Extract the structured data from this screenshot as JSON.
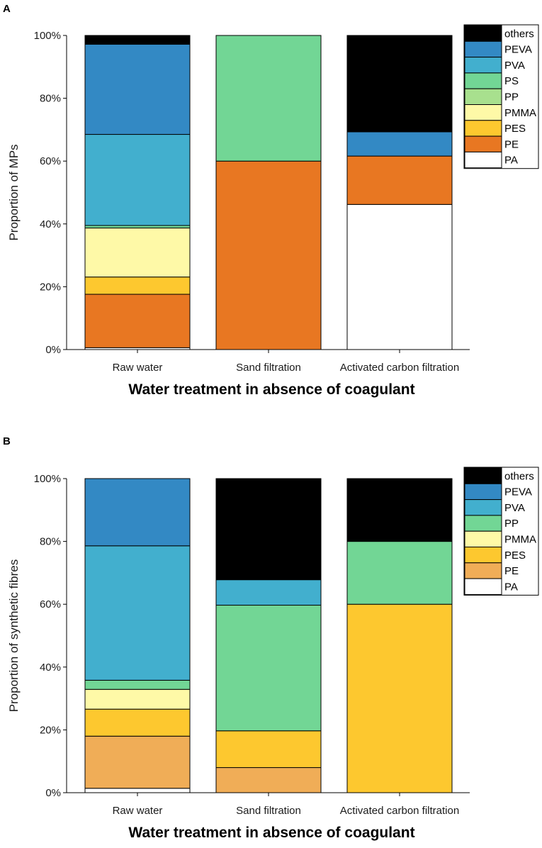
{
  "chart_data": [
    {
      "type": "bar",
      "stacked": true,
      "panel": "A",
      "categories": [
        "Raw water",
        "Sand filtration",
        "Activated carbon filtration"
      ],
      "xlabel": "Water treatment in absence of coagulant",
      "ylabel": "Proportion of MPs",
      "ylim": [
        0,
        100
      ],
      "yticks": [
        0,
        20,
        40,
        60,
        80,
        100
      ],
      "ytick_suffix": "%",
      "legend_position": "top-right",
      "series": [
        {
          "name": "PA",
          "color": "#ffffff",
          "values": [
            0.6,
            0,
            46.2
          ]
        },
        {
          "name": "PE",
          "color": "#e87722",
          "values": [
            17.0,
            60.0,
            15.4
          ]
        },
        {
          "name": "PES",
          "color": "#fdc82f",
          "values": [
            5.5,
            0,
            0
          ]
        },
        {
          "name": "PMMA",
          "color": "#fef9a7",
          "values": [
            15.6,
            0,
            0
          ]
        },
        {
          "name": "PP",
          "color": "#a8e08e",
          "values": [
            0,
            0,
            0
          ]
        },
        {
          "name": "PS",
          "color": "#72d695",
          "values": [
            0.8,
            40.0,
            0
          ]
        },
        {
          "name": "PVA",
          "color": "#42afce",
          "values": [
            29.0,
            0,
            0
          ]
        },
        {
          "name": "PEVA",
          "color": "#3389c4",
          "values": [
            28.7,
            0,
            7.7
          ]
        },
        {
          "name": "others",
          "color": "#000000",
          "values": [
            2.8,
            0,
            30.7
          ]
        }
      ]
    },
    {
      "type": "bar",
      "stacked": true,
      "panel": "B",
      "categories": [
        "Raw water",
        "Sand filtration",
        "Activated carbon filtration"
      ],
      "xlabel": "Water treatment in absence of coagulant",
      "ylabel": "Proportion of synthetic fibres",
      "ylim": [
        0,
        100
      ],
      "yticks": [
        0,
        20,
        40,
        60,
        80,
        100
      ],
      "ytick_suffix": "%",
      "legend_position": "top-right",
      "series": [
        {
          "name": "PA",
          "color": "#ffffff",
          "values": [
            1.4,
            0,
            0
          ]
        },
        {
          "name": "PE",
          "color": "#f0ad57",
          "values": [
            16.6,
            8.0,
            0
          ]
        },
        {
          "name": "PES",
          "color": "#fdc82f",
          "values": [
            8.6,
            11.7,
            60.0
          ]
        },
        {
          "name": "PMMA",
          "color": "#fef9a7",
          "values": [
            6.3,
            0,
            0
          ]
        },
        {
          "name": "PP",
          "color": "#72d695",
          "values": [
            2.9,
            40.0,
            20.0
          ]
        },
        {
          "name": "PVA",
          "color": "#42afce",
          "values": [
            42.8,
            8.1,
            0
          ]
        },
        {
          "name": "PEVA",
          "color": "#3389c4",
          "values": [
            21.4,
            0,
            0
          ]
        },
        {
          "name": "others",
          "color": "#000000",
          "values": [
            0,
            32.2,
            20.0
          ]
        }
      ]
    }
  ]
}
